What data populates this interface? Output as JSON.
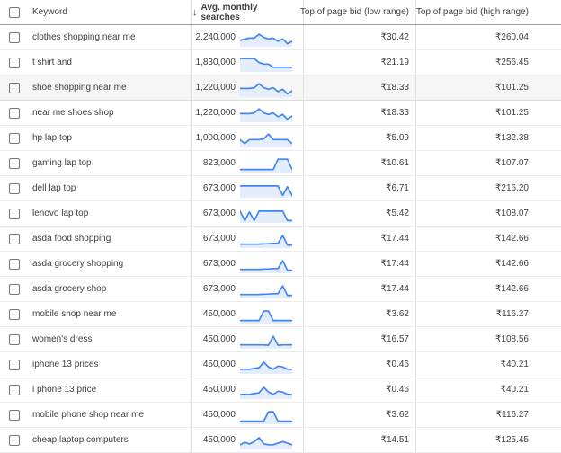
{
  "table": {
    "columns": {
      "keyword": "Keyword",
      "searches": "Avg. monthly searches",
      "low": "Top of page bid (low range)",
      "high": "Top of page bid (high range)"
    },
    "sort_icon": "↓",
    "colors": {
      "spark_line": "#4285f4",
      "spark_fill": "#e4edfc",
      "highlight_row_bg": "#f6f6f6",
      "header_border": "#9c9c9c",
      "row_border": "#ebebeb",
      "text": "#3c4043"
    },
    "rows": [
      {
        "keyword": "clothes shopping near me",
        "searches": "2,240,000",
        "low": "₹30.42",
        "high": "₹260.04",
        "highlighted": false,
        "spark": [
          3.5,
          4.5,
          5,
          5,
          7.5,
          5.5,
          4.5,
          5,
          3,
          4.5,
          1.5,
          3
        ]
      },
      {
        "keyword": "t shirt and",
        "searches": "1,830,000",
        "low": "₹21.19",
        "high": "₹256.45",
        "highlighted": false,
        "spark": [
          8,
          8,
          8,
          8,
          5.5,
          4.5,
          4.5,
          2.5,
          2.5,
          2.5,
          2.5,
          2.5
        ]
      },
      {
        "keyword": "shoe shopping near me",
        "searches": "1,220,000",
        "low": "₹18.33",
        "high": "₹101.25",
        "highlighted": true,
        "spark": [
          5,
          5,
          5,
          5.5,
          8,
          5.5,
          4.5,
          5.5,
          3,
          4.5,
          1.5,
          3.5
        ]
      },
      {
        "keyword": "near me shoes shop",
        "searches": "1,220,000",
        "low": "₹18.33",
        "high": "₹101.25",
        "highlighted": false,
        "spark": [
          5,
          5,
          5,
          5.5,
          8,
          5.5,
          4.5,
          5.5,
          3,
          4.5,
          1.5,
          3.5
        ]
      },
      {
        "keyword": "hp lap top",
        "searches": "1,000,000",
        "low": "₹5.09",
        "high": "₹132.38",
        "highlighted": false,
        "spark": [
          4.5,
          2,
          4.5,
          4.5,
          4.5,
          5,
          8,
          4.5,
          4.5,
          4.5,
          4.5,
          2
        ]
      },
      {
        "keyword": "gaming lap top",
        "searches": "823,000",
        "low": "₹10.61",
        "high": "₹107.07",
        "highlighted": false,
        "spark": [
          1.5,
          1.5,
          1.5,
          1.5,
          1.5,
          1.5,
          1.5,
          1.5,
          8,
          8,
          8,
          1.5
        ]
      },
      {
        "keyword": "dell lap top",
        "searches": "673,000",
        "low": "₹6.71",
        "high": "₹216.20",
        "highlighted": false,
        "spark": [
          7,
          7,
          7,
          7,
          7,
          7,
          7,
          7,
          7,
          1,
          6.5,
          1
        ]
      },
      {
        "keyword": "lenovo lap top",
        "searches": "673,000",
        "low": "₹5.42",
        "high": "₹108.07",
        "highlighted": false,
        "spark": [
          7,
          1,
          6.5,
          1,
          7,
          7,
          7,
          7,
          7,
          7,
          1,
          1
        ]
      },
      {
        "keyword": "asda food shopping",
        "searches": "673,000",
        "low": "₹17.44",
        "high": "₹142.66",
        "highlighted": false,
        "spark": [
          2,
          2,
          2,
          2,
          2,
          2.2,
          2.3,
          2.5,
          2.5,
          7.5,
          1.5,
          1.5
        ]
      },
      {
        "keyword": "asda grocery shopping",
        "searches": "673,000",
        "low": "₹17.44",
        "high": "₹142.66",
        "highlighted": false,
        "spark": [
          2,
          2,
          2,
          2,
          2,
          2.2,
          2.3,
          2.5,
          2.5,
          7.5,
          1.5,
          1.5
        ]
      },
      {
        "keyword": "asda grocery shop",
        "searches": "673,000",
        "low": "₹17.44",
        "high": "₹142.66",
        "highlighted": false,
        "spark": [
          2,
          2,
          2,
          2,
          2,
          2.2,
          2.3,
          2.5,
          2.5,
          7.5,
          1.5,
          1.5
        ]
      },
      {
        "keyword": "mobile shop near me",
        "searches": "450,000",
        "low": "₹3.62",
        "high": "₹116.27",
        "highlighted": false,
        "spark": [
          1.5,
          1.5,
          1.5,
          1.5,
          1.5,
          7.5,
          7.5,
          1.5,
          1.5,
          1.5,
          1.5,
          1.5
        ]
      },
      {
        "keyword": "women's dress",
        "searches": "450,000",
        "low": "₹16.57",
        "high": "₹108.56",
        "highlighted": false,
        "spark": [
          2,
          2,
          2,
          2,
          2,
          2,
          1.8,
          7.5,
          1.8,
          2,
          2,
          2
        ]
      },
      {
        "keyword": "iphone 13 prices",
        "searches": "450,000",
        "low": "₹0.46",
        "high": "₹40.21",
        "highlighted": false,
        "spark": [
          2.5,
          2.5,
          2.5,
          3,
          3.5,
          7,
          4,
          2.5,
          4.5,
          4,
          2.5,
          2.5
        ]
      },
      {
        "keyword": "i phone 13 price",
        "searches": "450,000",
        "low": "₹0.46",
        "high": "₹40.21",
        "highlighted": false,
        "spark": [
          2.5,
          2.5,
          2.5,
          3,
          3.5,
          7,
          4,
          2.5,
          4.5,
          4,
          2.5,
          2.5
        ]
      },
      {
        "keyword": "mobile phone shop near me",
        "searches": "450,000",
        "low": "₹3.62",
        "high": "₹116.27",
        "highlighted": false,
        "spark": [
          1.5,
          1.5,
          1.5,
          1.5,
          1.5,
          1.5,
          7.5,
          7.5,
          1.5,
          1.5,
          1.5,
          1.5
        ]
      },
      {
        "keyword": "cheap laptop computers",
        "searches": "450,000",
        "low": "₹14.51",
        "high": "₹125.45",
        "highlighted": false,
        "spark": [
          2.5,
          4,
          3,
          4.5,
          7,
          3,
          2.5,
          2.5,
          3.5,
          4.5,
          3.5,
          2.5
        ]
      }
    ]
  }
}
